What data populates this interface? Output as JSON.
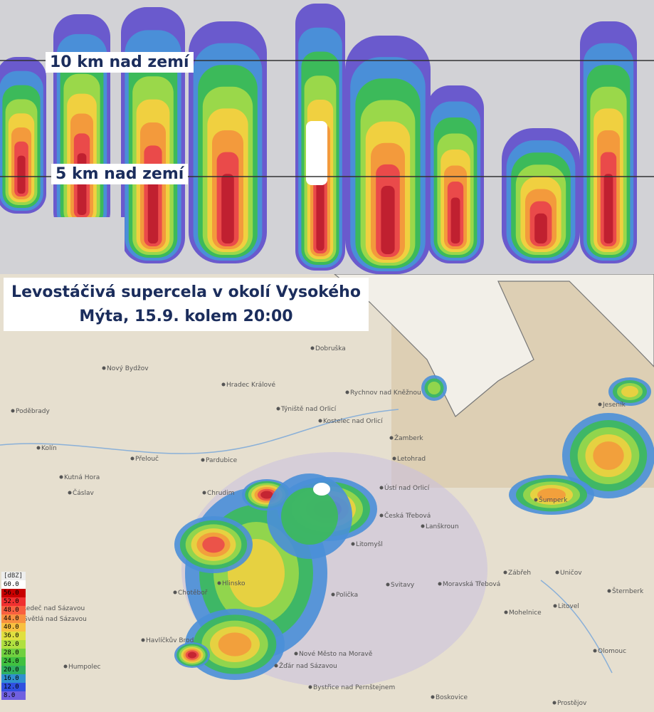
{
  "cross_section": {
    "label_10km": "10 km nad zemí",
    "label_5km": "5 km nad zemí"
  },
  "map": {
    "title_lines": [
      "Levostáčivá supercela v okolí Vysokého",
      "Mýta, 15.9. kolem 20:00"
    ],
    "towns": [
      "Hradec Králové",
      "Pardubice",
      "Chrudim",
      "Dobruška",
      "Nový Bydžov",
      "Poděbrady",
      "Kolín",
      "Přelouč",
      "Kutná Hora",
      "Čáslav",
      "Rychnov nad Kněžnou",
      "Týniště nad Orlicí",
      "Kostelec nad Orlicí",
      "Žamberk",
      "Letohrad",
      "Ústí nad Orlicí",
      "Česká Třebová",
      "Lanškroun",
      "Litomyšl",
      "Svitavy",
      "Polička",
      "Moravská Třebová",
      "Zábřeh",
      "Šumperk",
      "Jeseník",
      "Mohelnice",
      "Uničov",
      "Litovel",
      "Šternberk",
      "Olomouc",
      "Prostějov",
      "Boskovice",
      "Chotěboř",
      "Ledeč nad Sázavou",
      "Světlá nad Sázavou",
      "Havlíčkův Brod",
      "Humpolec",
      "Žďár nad Sázavou",
      "Nové Město na Moravě",
      "Bystřice nad Pernštejnem",
      "Hlinsko"
    ]
  },
  "legend": {
    "unit": "[dBZ]",
    "items": [
      {
        "label": "60.0",
        "color": "#ffffff"
      },
      {
        "label": "56.0",
        "color": "#c80000"
      },
      {
        "label": "52.0",
        "color": "#f03030"
      },
      {
        "label": "48.0",
        "color": "#f86040"
      },
      {
        "label": "44.0",
        "color": "#f89040"
      },
      {
        "label": "40.0",
        "color": "#f8c040"
      },
      {
        "label": "36.0",
        "color": "#e0e040"
      },
      {
        "label": "32.0",
        "color": "#b0e040"
      },
      {
        "label": "28.0",
        "color": "#70d040"
      },
      {
        "label": "24.0",
        "color": "#40c040"
      },
      {
        "label": "20.0",
        "color": "#30b060"
      },
      {
        "label": "16.0",
        "color": "#3090d0"
      },
      {
        "label": "12.0",
        "color": "#3050e0"
      },
      {
        "label": "8.0",
        "color": "#7060e0"
      }
    ]
  }
}
